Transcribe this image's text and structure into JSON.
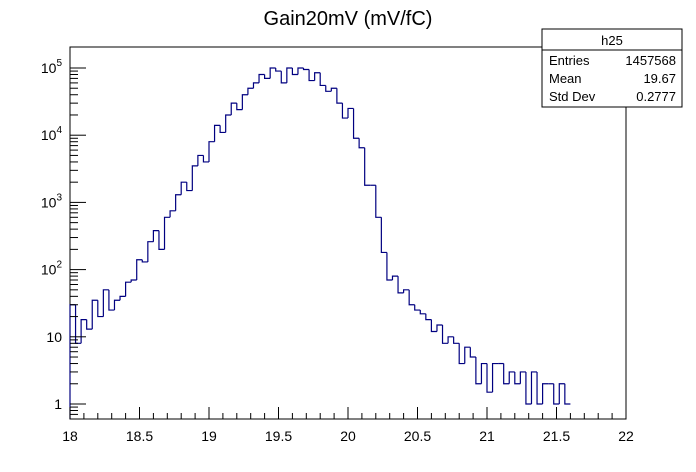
{
  "chart_data": {
    "type": "histogram",
    "title": "Gain20mV (mV/fC)",
    "xlabel": "",
    "ylabel": "",
    "xlim": [
      18,
      22
    ],
    "ylim": [
      0.6,
      170000
    ],
    "y_scale": "log",
    "grid": false,
    "legend": "none",
    "line_color": "#000080",
    "bin_width": 0.04,
    "x_ticks": [
      {
        "value": 18,
        "label": "18"
      },
      {
        "value": 18.5,
        "label": "18.5"
      },
      {
        "value": 19,
        "label": "19"
      },
      {
        "value": 19.5,
        "label": "19.5"
      },
      {
        "value": 20,
        "label": "20"
      },
      {
        "value": 20.5,
        "label": "20.5"
      },
      {
        "value": 21,
        "label": "21"
      },
      {
        "value": 21.5,
        "label": "21.5"
      },
      {
        "value": 22,
        "label": "22"
      }
    ],
    "y_ticks": [
      {
        "value": 1,
        "label": "1"
      },
      {
        "value": 10,
        "label": "10"
      },
      {
        "value": 100,
        "base": "10",
        "exp": "2"
      },
      {
        "value": 1000,
        "base": "10",
        "exp": "3"
      },
      {
        "value": 10000,
        "base": "10",
        "exp": "4"
      },
      {
        "value": 100000,
        "base": "10",
        "exp": "5"
      }
    ],
    "values": [
      30,
      8,
      18,
      13,
      35,
      20,
      50,
      25,
      35,
      40,
      65,
      70,
      140,
      130,
      260,
      380,
      200,
      600,
      750,
      1300,
      2000,
      1500,
      3500,
      5000,
      4000,
      8000,
      14000,
      11000,
      20000,
      30000,
      24000,
      40000,
      50000,
      60000,
      80000,
      70000,
      100000,
      90000,
      60000,
      100000,
      80000,
      100000,
      95000,
      65000,
      85000,
      55000,
      45000,
      50000,
      30000,
      18000,
      25000,
      9000,
      6500,
      1800,
      1800,
      600,
      180,
      70,
      80,
      45,
      50,
      30,
      25,
      22,
      18,
      12,
      15,
      8,
      10,
      8,
      4,
      7,
      5,
      2,
      4,
      1.5,
      4,
      4,
      2,
      3,
      2,
      3,
      1,
      3,
      1,
      2,
      2,
      1,
      2,
      1
    ],
    "stats_box": {
      "name": "h25",
      "rows": [
        {
          "label": "Entries",
          "value": "1457568"
        },
        {
          "label": "Mean",
          "value": "19.67"
        },
        {
          "label": "Std Dev",
          "value": "0.2777"
        }
      ]
    }
  }
}
